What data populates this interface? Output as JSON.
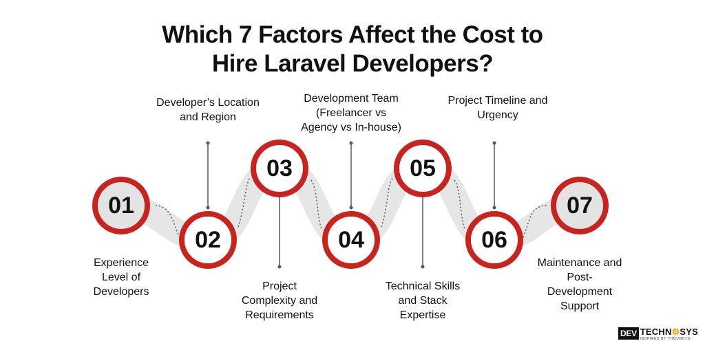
{
  "title": {
    "line1": "Which 7 Factors Affect the Cost to",
    "line2": "Hire Laravel Developers?"
  },
  "colors": {
    "ring": "#c7231f",
    "band": "#e6e6e6",
    "text": "#111111"
  },
  "factors": [
    {
      "number": "01",
      "label": [
        "Experience",
        "Level of",
        "Developers"
      ]
    },
    {
      "number": "02",
      "label": [
        "Developer’s Location",
        "and Region"
      ]
    },
    {
      "number": "03",
      "label": [
        "Project",
        "Complexity and",
        "Requirements"
      ]
    },
    {
      "number": "04",
      "label": [
        "Development Team",
        "(Freelancer vs",
        "Agency vs In-house)"
      ]
    },
    {
      "number": "05",
      "label": [
        "Technical Skills",
        "and Stack",
        "Expertise"
      ]
    },
    {
      "number": "06",
      "label": [
        "Project Timeline and",
        "Urgency"
      ]
    },
    {
      "number": "07",
      "label": [
        "Maintenance and",
        "Post-",
        "Development",
        "Support"
      ]
    }
  ],
  "logo": {
    "box": "DEV",
    "name_a": "TECHN",
    "name_gear": "⚙",
    "name_b": "SYS",
    "tagline": "INSPIRED BY THOUGHTS"
  }
}
